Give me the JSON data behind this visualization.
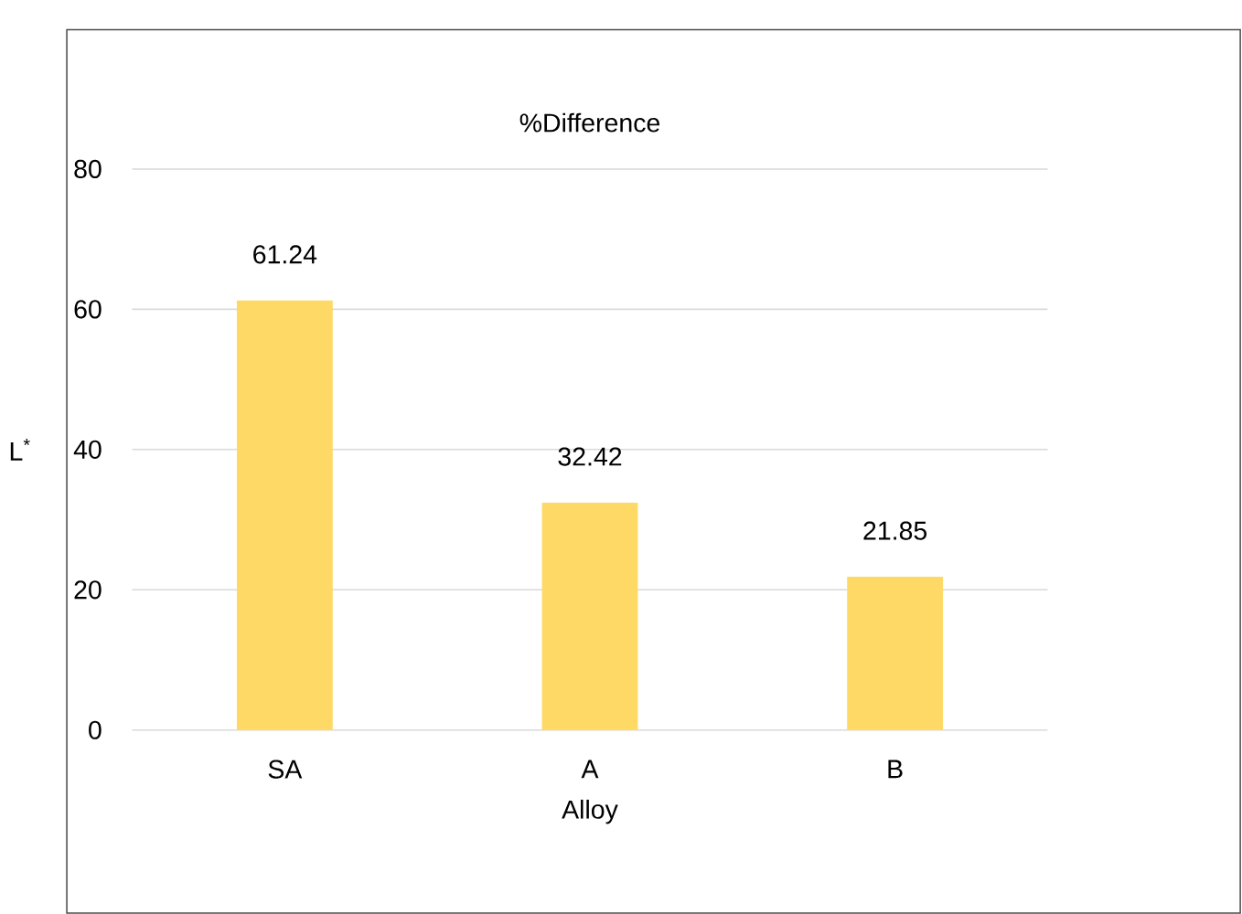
{
  "chart_data": {
    "type": "bar",
    "title": "%Difference",
    "xlabel": "Alloy",
    "ylabel": "L$^{*}$",
    "categories": [
      "SA",
      "A",
      "B"
    ],
    "values": [
      61.24,
      32.42,
      21.85
    ],
    "color": "#ffd966",
    "ylim": [
      0,
      80
    ],
    "yticks": [
      0,
      20,
      40,
      60,
      80
    ],
    "grid": "y",
    "data_labels": true
  }
}
